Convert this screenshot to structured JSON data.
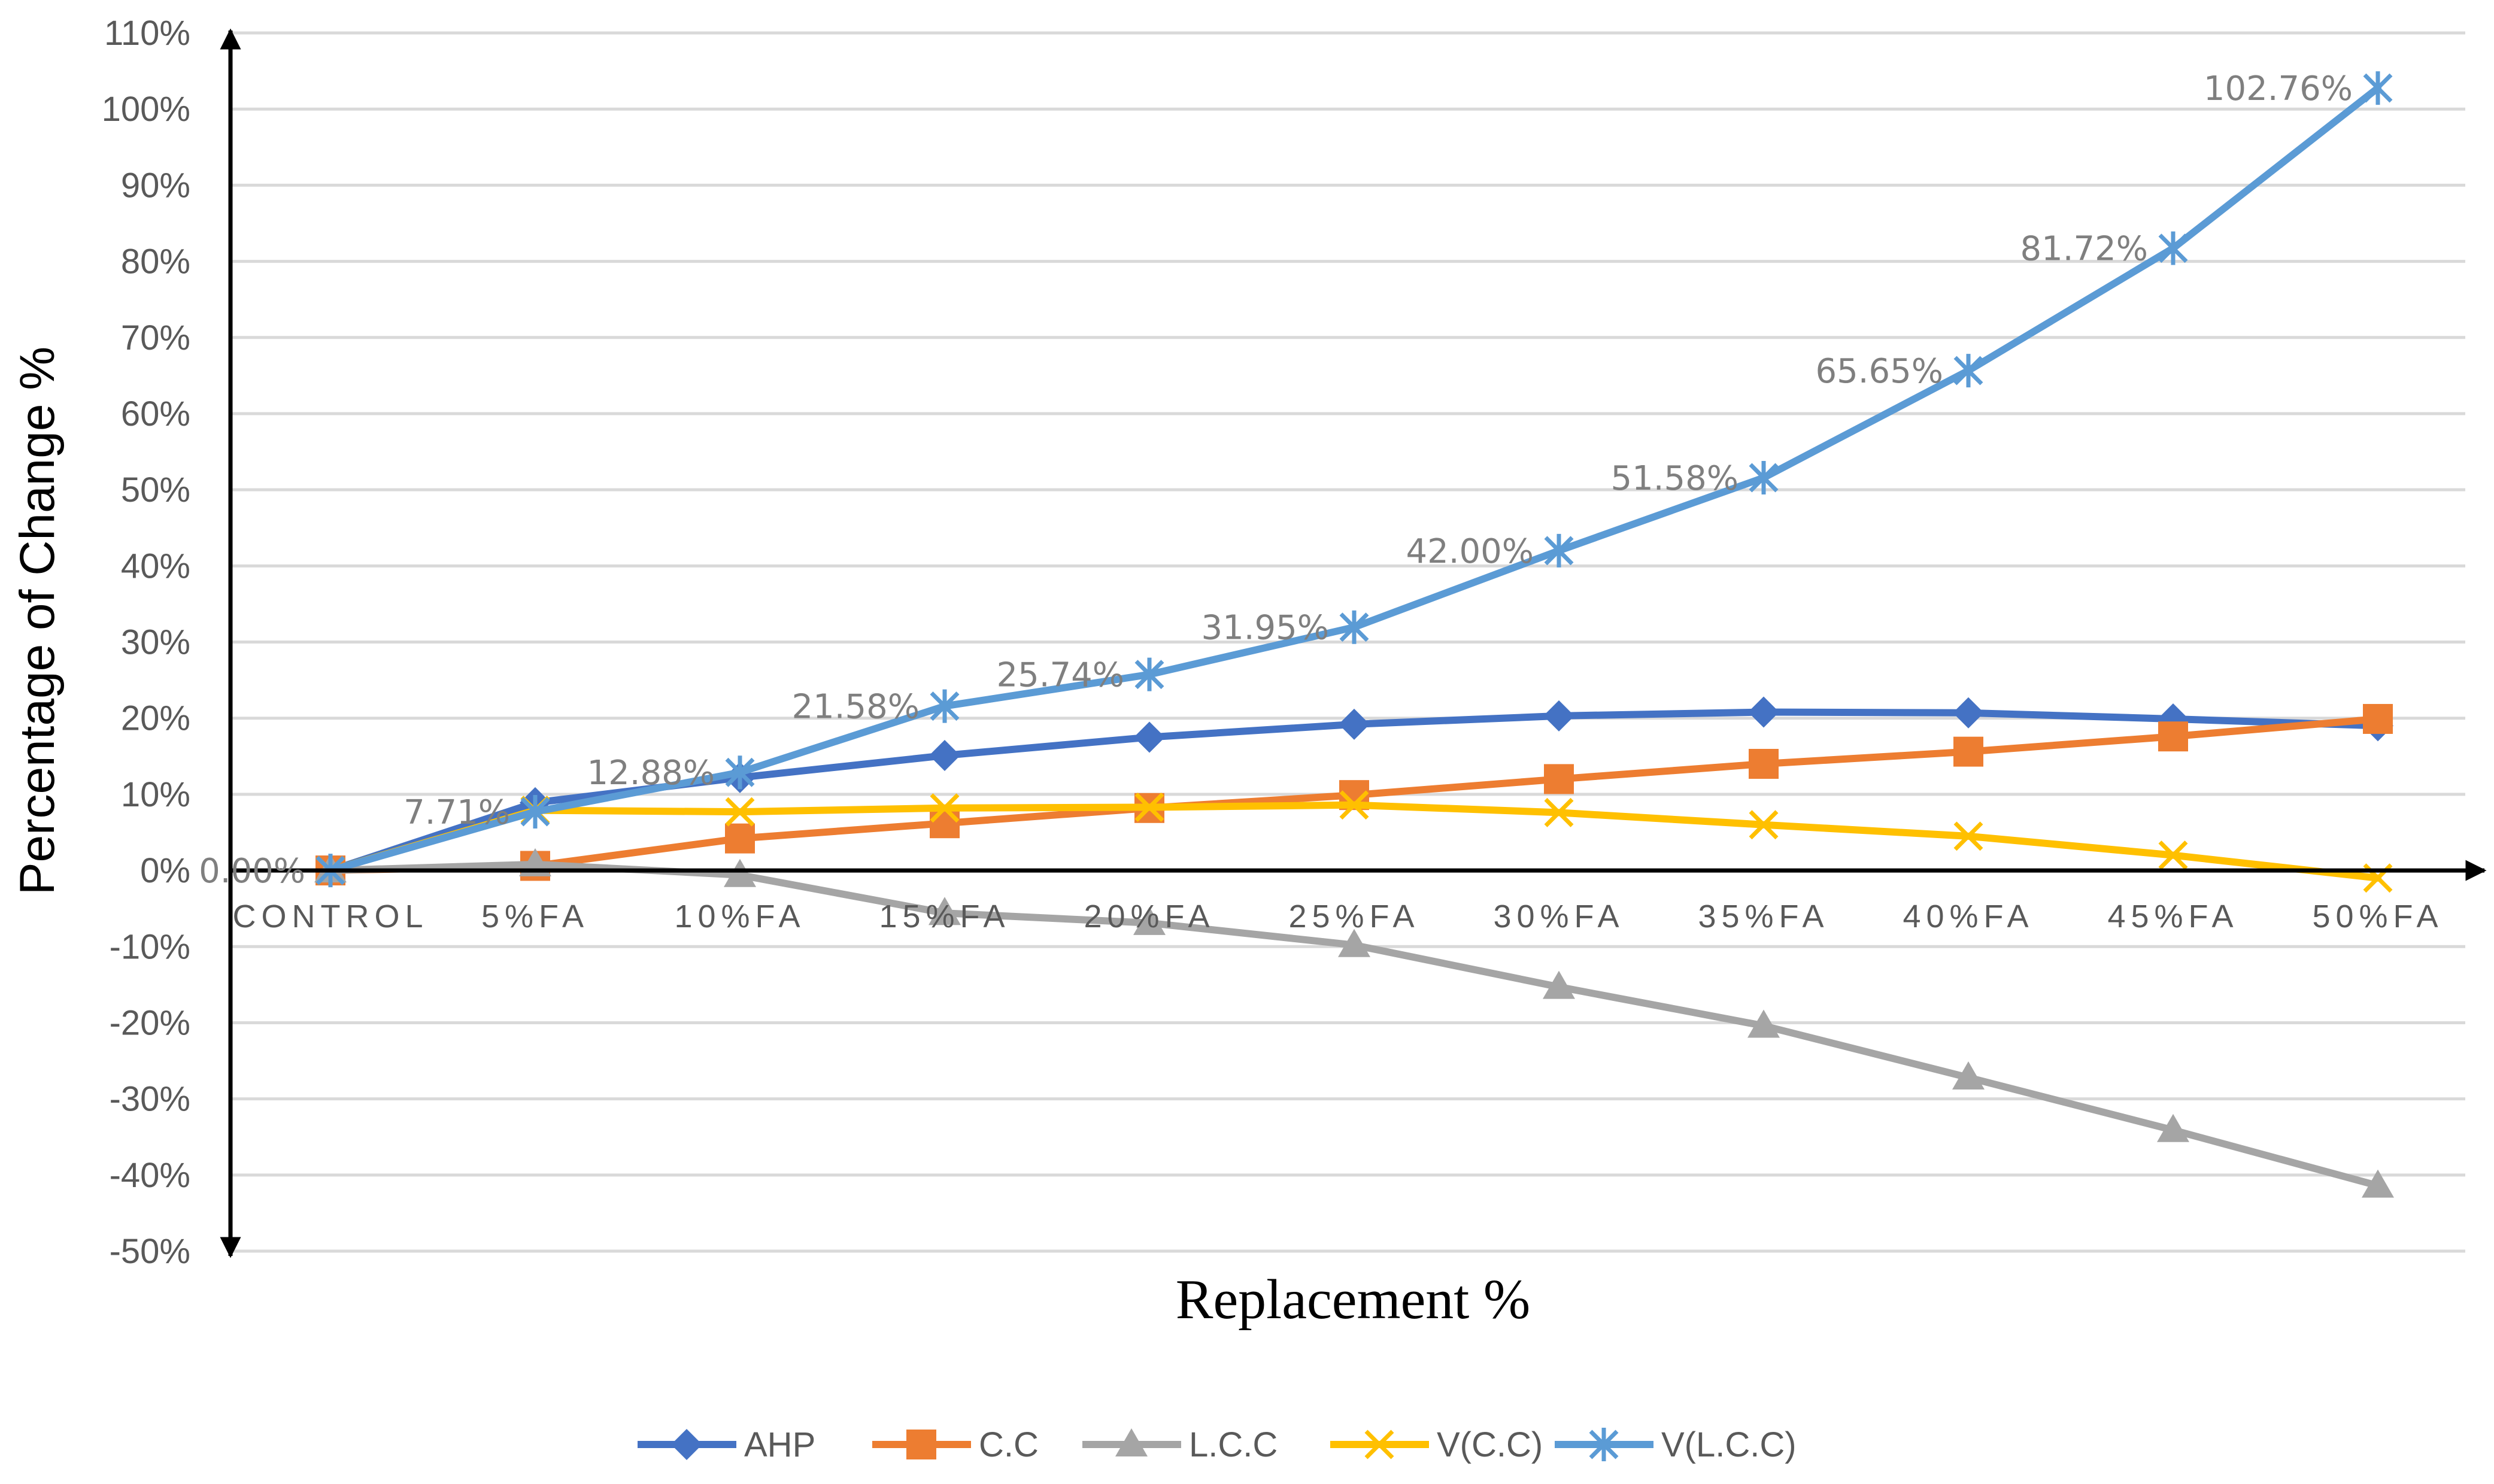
{
  "chart_data": {
    "type": "line",
    "title": "",
    "xlabel": "Replacement %",
    "ylabel": "Percentage of Change %",
    "categories": [
      "CONTROL",
      "5%FA",
      "10%FA",
      "15%FA",
      "20%FA",
      "25%FA",
      "30%FA",
      "35%FA",
      "40%FA",
      "45%FA",
      "50%FA"
    ],
    "ylim": [
      -50,
      110
    ],
    "y_ticks": [
      -50,
      -40,
      -30,
      -20,
      -10,
      0,
      10,
      20,
      30,
      40,
      50,
      60,
      70,
      80,
      90,
      100,
      110
    ],
    "y_tick_labels": [
      "-50%",
      "-40%",
      "-30%",
      "-20%",
      "-10%",
      "0%",
      "10%",
      "20%",
      "30%",
      "40%",
      "50%",
      "60%",
      "70%",
      "80%",
      "90%",
      "100%",
      "110%"
    ],
    "grid": true,
    "legend_position": "bottom",
    "series": [
      {
        "name": "AHP",
        "color": "#4472c4",
        "marker": "diamond",
        "values": [
          0,
          8.9,
          12.2,
          15.1,
          17.5,
          19.2,
          20.3,
          20.8,
          20.7,
          19.9,
          19.0
        ]
      },
      {
        "name": "C.C",
        "color": "#ed7d31",
        "marker": "square",
        "values": [
          0,
          0.6,
          4.2,
          6.2,
          8.2,
          9.9,
          12.0,
          14.0,
          15.6,
          17.6,
          19.9
        ]
      },
      {
        "name": "L.C.C",
        "color": "#a5a5a5",
        "marker": "triangle",
        "values": [
          0,
          0.8,
          -0.6,
          -5.6,
          -6.9,
          -9.8,
          -15.3,
          -20.4,
          -27.2,
          -34.1,
          -41.4
        ]
      },
      {
        "name": "V(C.C)",
        "color": "#ffc000",
        "marker": "x",
        "values": [
          0,
          7.9,
          7.7,
          8.2,
          8.3,
          8.6,
          7.6,
          6.0,
          4.5,
          2.0,
          -1.0
        ]
      },
      {
        "name": "V(L.C.C)",
        "color": "#5b9bd5",
        "marker": "asterisk",
        "values": [
          0,
          7.71,
          12.88,
          21.58,
          25.74,
          31.95,
          42.0,
          51.58,
          65.65,
          81.72,
          102.76
        ]
      }
    ],
    "data_labels": [
      "0.00%",
      "7.71%",
      "12.88%",
      "21.58%",
      "25.74%",
      "31.95%",
      "42.00%",
      "51.58%",
      "65.65%",
      "81.72%",
      "102.76%"
    ],
    "data_labels_series": "V(L.C.C)"
  }
}
